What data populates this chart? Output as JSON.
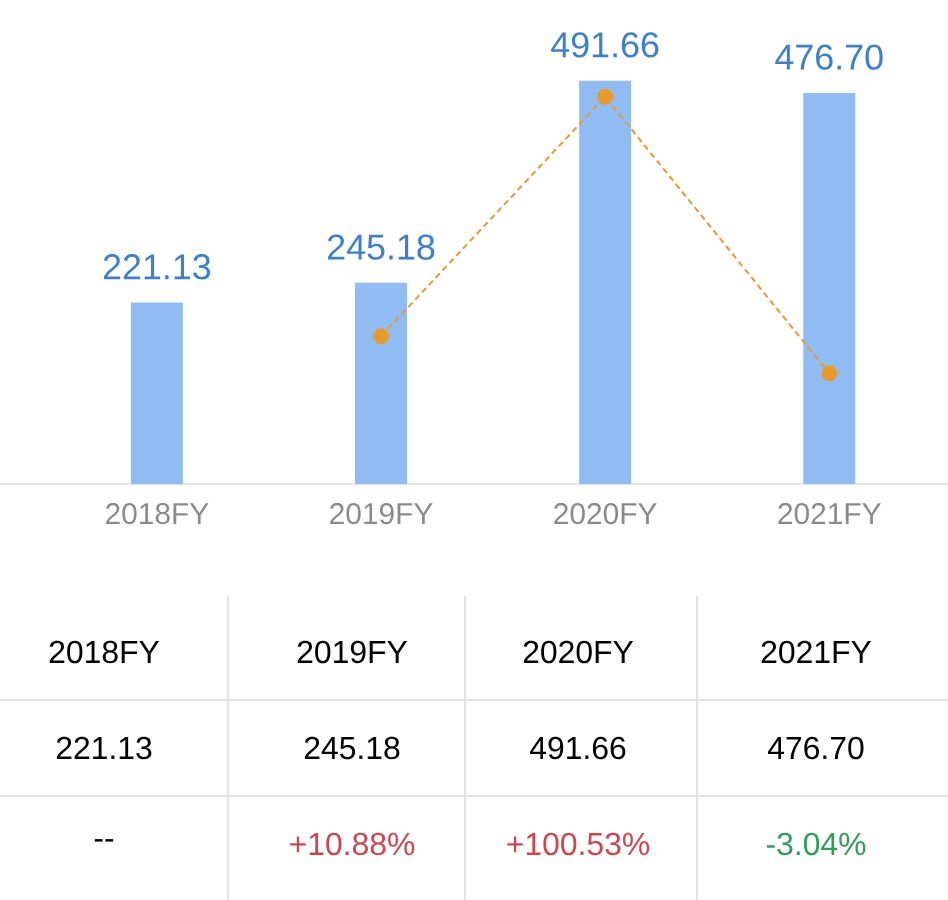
{
  "chart_data": {
    "type": "bar",
    "categories": [
      "2018FY",
      "2019FY",
      "2020FY",
      "2021FY"
    ],
    "series": [
      {
        "type": "bar",
        "color": "#8fbcf3",
        "values": [
          221.13,
          245.18,
          491.66,
          476.7
        ],
        "value_labels": [
          "221.13",
          "245.18",
          "491.66",
          "476.70"
        ]
      },
      {
        "type": "line",
        "axis": "y2",
        "color": "#e89a2c",
        "values": [
          null,
          10.88,
          100.53,
          -3.04
        ],
        "value_labels": [
          "--",
          "+10.88%",
          "+100.53%",
          "-3.04%"
        ]
      }
    ],
    "marker": "circle",
    "line_style": "dashed"
  }
}
